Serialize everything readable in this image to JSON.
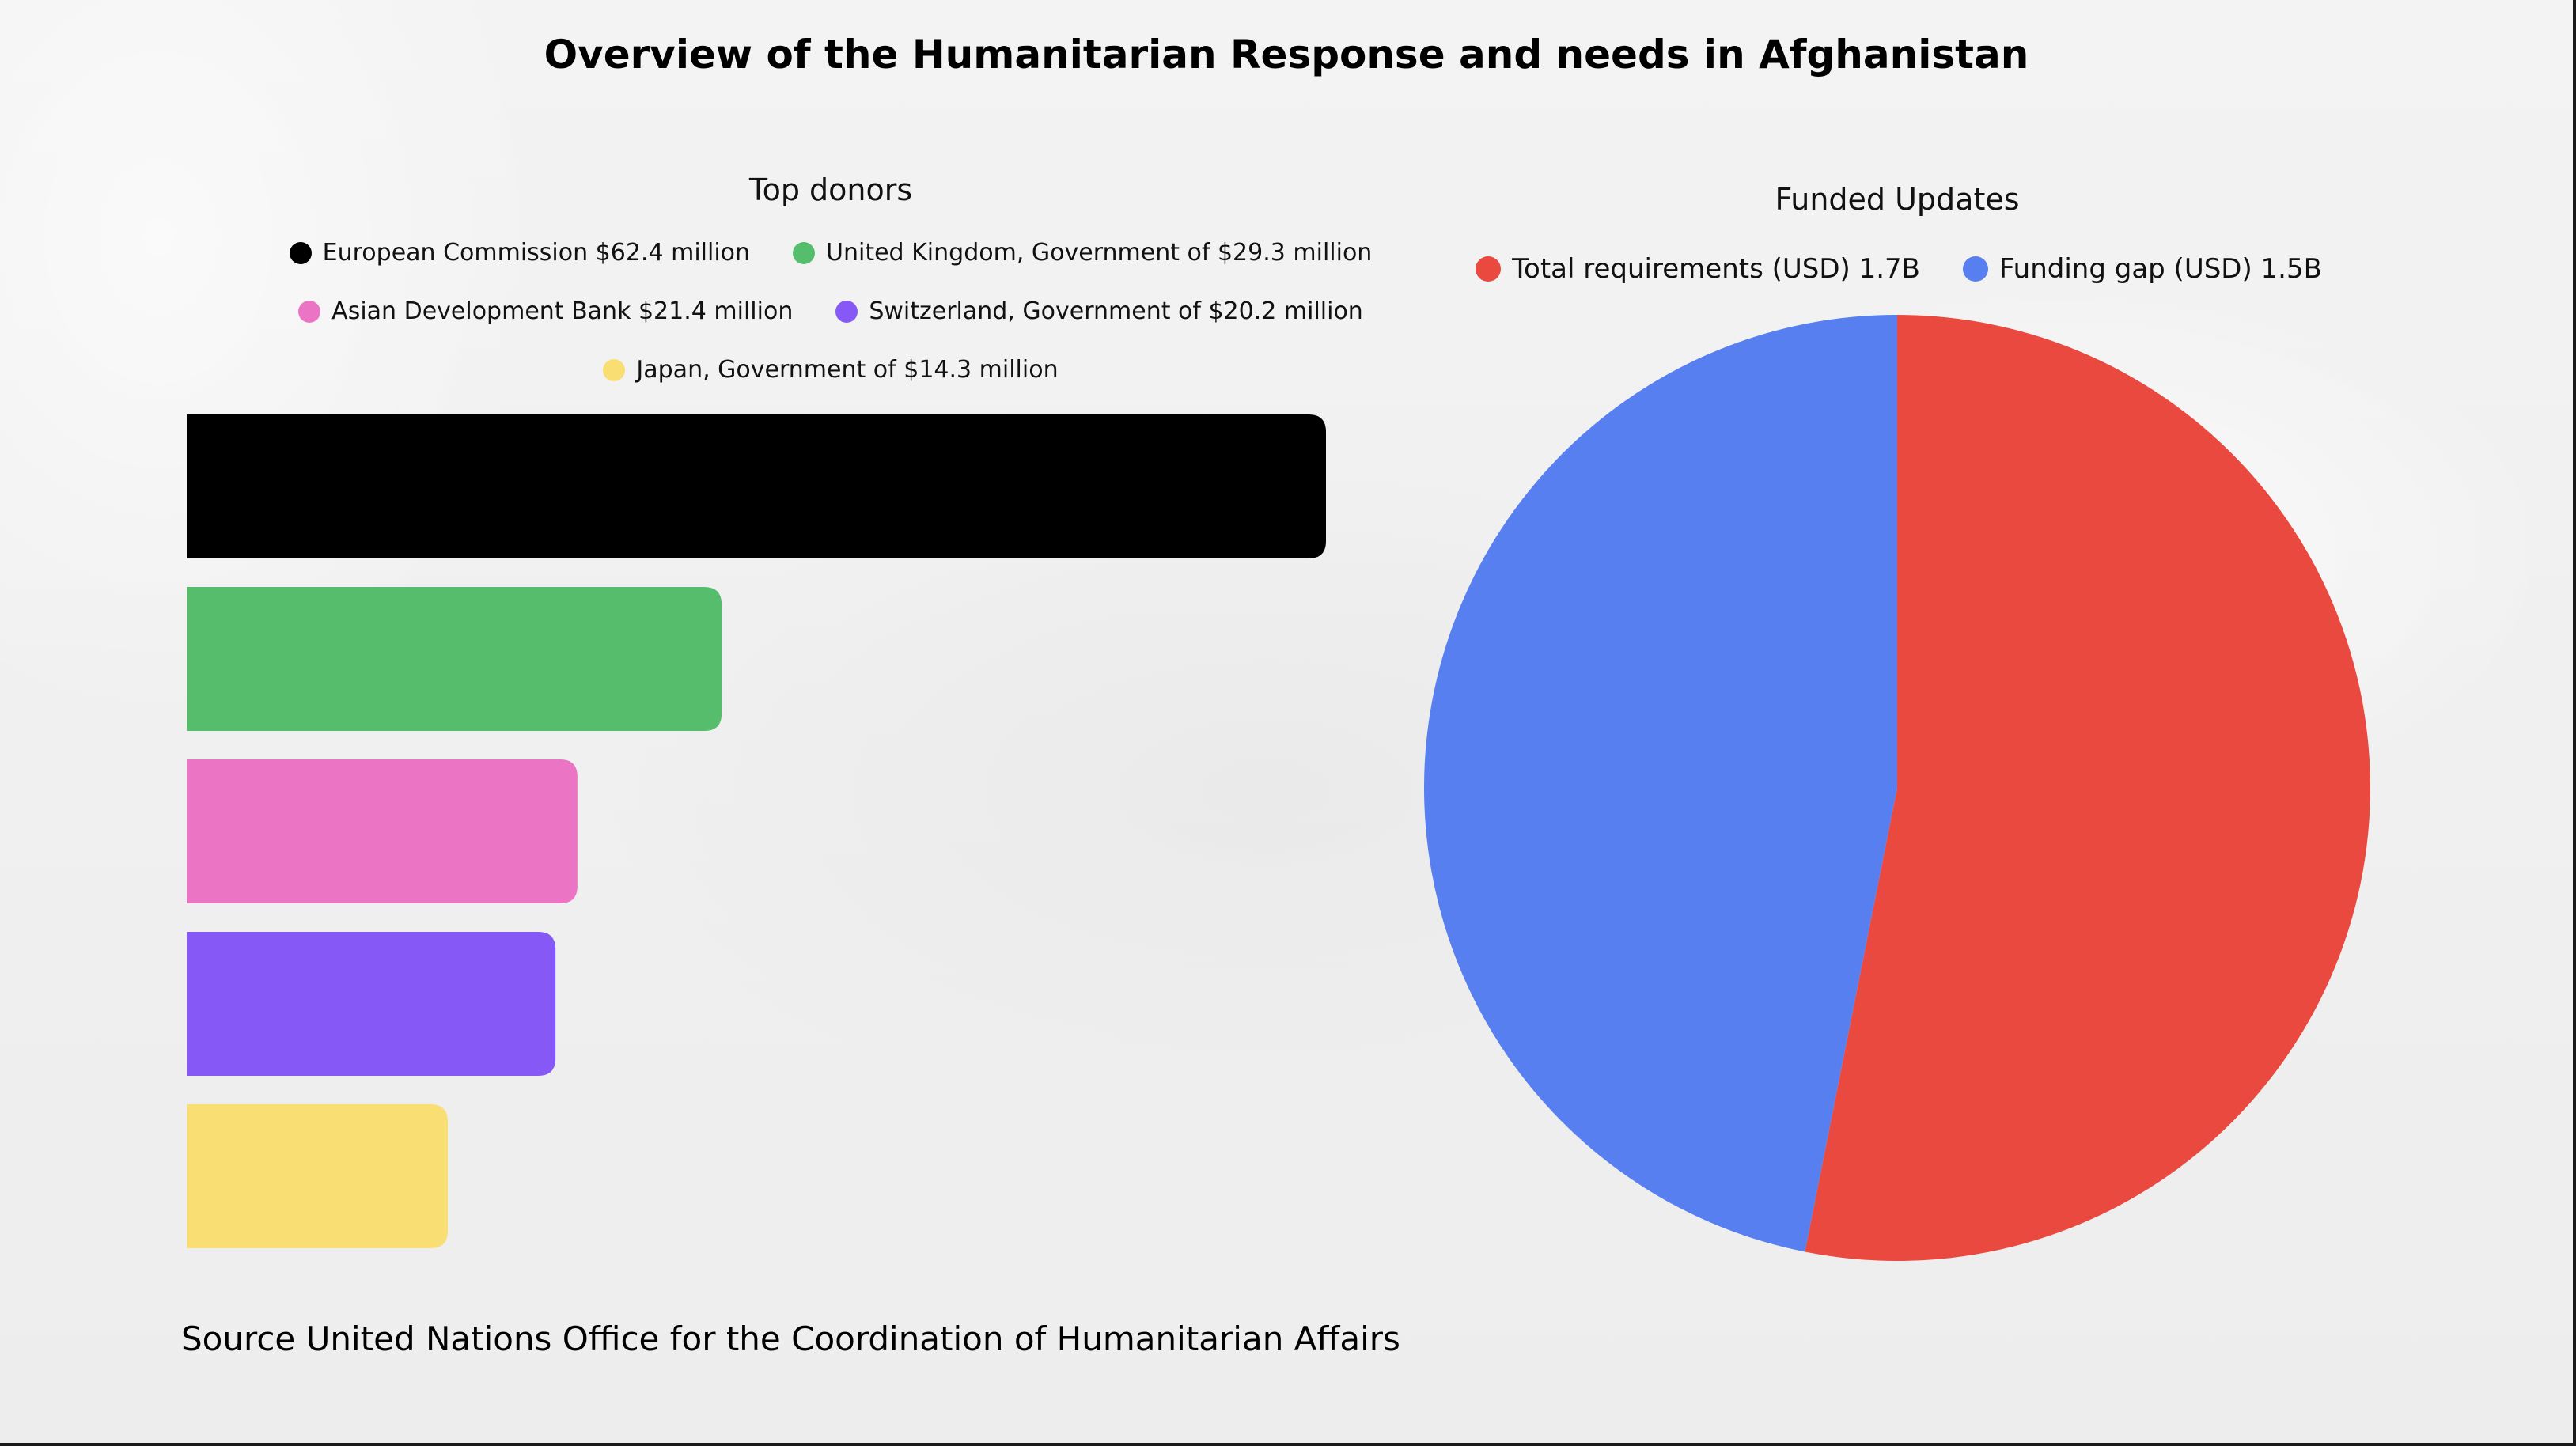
{
  "title": "Overview of the Humanitarian Response and needs in Afghanistan",
  "source": "Source United Nations Office for the Coordination of Humanitarian Affairs",
  "chart_data": [
    {
      "type": "bar",
      "orientation": "horizontal",
      "title": "Top donors",
      "categories": [
        "European Commission $62.4 million",
        "United Kingdom, Government of $29.3 million",
        "Asian Development Bank $21.4 million",
        "Switzerland, Government of $20.2 million",
        "Japan, Government of $14.3 million"
      ],
      "values": [
        62.4,
        29.3,
        21.4,
        20.2,
        14.3
      ],
      "colors": [
        "#000000",
        "#56bd6d",
        "#ec74c5",
        "#8659f6",
        "#f9de74"
      ],
      "legend": "top",
      "grid": false
    },
    {
      "type": "pie",
      "title": "Funded Updates",
      "labels": [
        "Total requirements (USD) 1.7B",
        "Funding gap (USD) 1.5B"
      ],
      "values": [
        1.7,
        1.5
      ],
      "colors": [
        "#e9493f",
        "#577ff0"
      ],
      "legend": "top"
    }
  ]
}
